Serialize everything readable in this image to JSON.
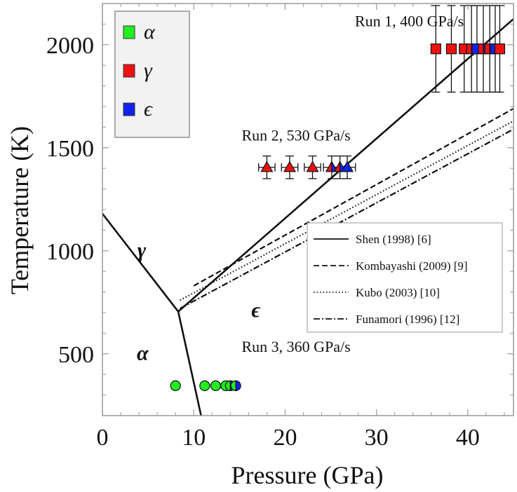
{
  "chart_data": {
    "type": "scatter",
    "xlabel": "Pressure (GPa)",
    "ylabel": "Temperature (K)",
    "xlim": [
      0,
      45
    ],
    "ylim": [
      200,
      2200
    ],
    "xticks": [
      0,
      10,
      20,
      30,
      40
    ],
    "yticks": [
      500,
      1000,
      1500,
      2000
    ],
    "grid": false,
    "legend_phases": {
      "placement": "top-left",
      "entries": [
        {
          "symbol": "α",
          "color": "#22ee22"
        },
        {
          "symbol": "γ",
          "color": "#ee1111"
        },
        {
          "symbol": "ϵ",
          "color": "#1122ee"
        }
      ]
    },
    "legend_lines": {
      "placement": "right",
      "entries": [
        {
          "label": "Shen (1998) [6]",
          "dash": "solid"
        },
        {
          "label": "Kombayashi (2009) [9]",
          "dash": "dashed"
        },
        {
          "label": "Kubo (2003) [10]",
          "dash": "dotted"
        },
        {
          "label": "Funamori (1996) [12]",
          "dash": "dashdot"
        }
      ]
    },
    "phase_boundaries": [
      {
        "name": "alpha-gamma",
        "x": [
          0,
          8.3
        ],
        "y": [
          1180,
          705
        ]
      },
      {
        "name": "alpha-epsilon",
        "x": [
          8.3,
          10.8
        ],
        "y": [
          705,
          200
        ]
      },
      {
        "name": "gamma-epsilon (Shen)",
        "x": [
          8.3,
          45
        ],
        "y": [
          705,
          2125
        ]
      }
    ],
    "boundary_lines": [
      {
        "name": "Kombayashi",
        "dash": "dashed",
        "x": [
          10,
          45
        ],
        "y": [
          830,
          1690
        ]
      },
      {
        "name": "Kubo",
        "dash": "dotted",
        "x": [
          8.5,
          45
        ],
        "y": [
          760,
          1630
        ]
      },
      {
        "name": "Funamori",
        "dash": "dashdot",
        "x": [
          8.5,
          45
        ],
        "y": [
          720,
          1590
        ]
      }
    ],
    "phase_labels": [
      {
        "text": "γ",
        "x": 4.3,
        "y": 970
      },
      {
        "text": "ϵ",
        "x": 16.8,
        "y": 680
      },
      {
        "text": "α",
        "x": 4.4,
        "y": 470
      }
    ],
    "run_labels": [
      {
        "text": "Run 1, 400 GPa/s",
        "x": 33.6,
        "y": 2090
      },
      {
        "text": "Run 2, 530 GPa/s",
        "x": 21.2,
        "y": 1535
      },
      {
        "text": "Run 3, 360 GPa/s",
        "x": 21.2,
        "y": 510
      }
    ],
    "series": [
      {
        "name": "Run 1",
        "marker": "square",
        "y": 1980,
        "yerr": 210,
        "points": [
          {
            "x": 36.5,
            "phase": "gamma",
            "xerr": 0.5
          },
          {
            "x": 38.2,
            "phase": "gamma",
            "xerr": 0.5
          },
          {
            "x": 39.6,
            "phase": "gamma",
            "xerr": 0.5
          },
          {
            "x": 40.4,
            "phase": "mixed",
            "xerr": 0.5
          },
          {
            "x": 41.0,
            "phase": "epsilon",
            "xerr": 0.5
          },
          {
            "x": 41.7,
            "phase": "mixed",
            "xerr": 0.5
          },
          {
            "x": 42.4,
            "phase": "mixed",
            "xerr": 0.5
          },
          {
            "x": 43.0,
            "phase": "epsilon",
            "xerr": 0.5
          },
          {
            "x": 43.5,
            "phase": "gamma",
            "xerr": 0.5
          }
        ]
      },
      {
        "name": "Run 2",
        "marker": "triangle",
        "y": 1405,
        "yerr": 55,
        "points": [
          {
            "x": 18.0,
            "phase": "gamma",
            "xerr": 0.9
          },
          {
            "x": 20.5,
            "phase": "gamma",
            "xerr": 0.9
          },
          {
            "x": 23.0,
            "phase": "gamma",
            "xerr": 0.9
          },
          {
            "x": 25.1,
            "phase": "mixed",
            "xerr": 0.9
          },
          {
            "x": 26.0,
            "phase": "mixed",
            "xerr": 0.9
          },
          {
            "x": 26.8,
            "phase": "epsilon",
            "xerr": 0.9
          }
        ]
      },
      {
        "name": "Run 3",
        "marker": "circle",
        "y": 345,
        "yerr": 0,
        "points": [
          {
            "x": 8.0,
            "phase": "alpha",
            "xerr": 0
          },
          {
            "x": 11.2,
            "phase": "alpha",
            "xerr": 0
          },
          {
            "x": 12.4,
            "phase": "alpha",
            "xerr": 0
          },
          {
            "x": 13.5,
            "phase": "alpha",
            "xerr": 0
          },
          {
            "x": 14.0,
            "phase": "alpha-epsilon",
            "xerr": 0
          },
          {
            "x": 14.6,
            "phase": "alpha-epsilon",
            "xerr": 0
          }
        ]
      }
    ]
  }
}
